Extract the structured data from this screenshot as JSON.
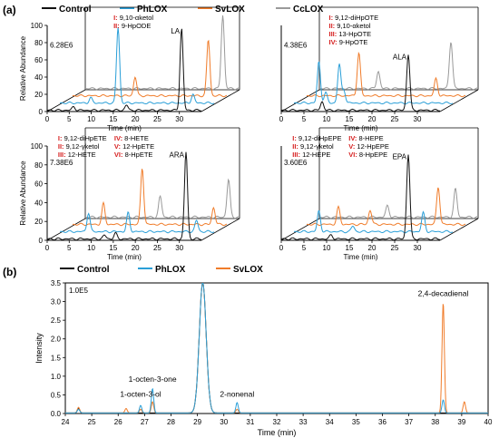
{
  "panel_labels": {
    "a": "(a)",
    "b": "(b)"
  },
  "legend_a": [
    {
      "name": "Control",
      "color": "#111111"
    },
    {
      "name": "PhLOX",
      "color": "#2a9fd8"
    },
    {
      "name": "SvLOX",
      "color": "#f07c2a"
    },
    {
      "name": "CcLOX",
      "color": "#9a9a9a"
    }
  ],
  "legend_b": [
    {
      "name": "Control",
      "color": "#111111"
    },
    {
      "name": "PhLOX",
      "color": "#2a9fd8"
    },
    {
      "name": "SvLOX",
      "color": "#f07c2a"
    }
  ],
  "colors": {
    "control": "#111111",
    "phlox": "#2a9fd8",
    "svlox": "#f07c2a",
    "cclox": "#9a9a9a",
    "marker": "#d62020"
  },
  "chart_data": [
    {
      "type": "line",
      "panel": "a-LA",
      "scale_label": "6.28E6",
      "substrate": "LA",
      "xlabel": "Time (min)",
      "ylabel": "Relative Abundance",
      "xlim": [
        0,
        35
      ],
      "ylim": [
        0,
        100
      ],
      "xticks": [
        0,
        5,
        10,
        15,
        20,
        25,
        30
      ],
      "yticks": [
        0,
        20,
        40,
        60,
        80,
        100
      ],
      "products": [
        {
          "id": "I",
          "name": "9,10-αketol"
        },
        {
          "id": "II",
          "name": "9-HpODE"
        }
      ],
      "series": [
        {
          "name": "Control",
          "peaks": [
            [
              30.5,
              95
            ],
            [
              18,
              6
            ],
            [
              6,
              4
            ]
          ]
        },
        {
          "name": "PhLOX",
          "peaks": [
            [
              13.2,
              88
            ],
            [
              7,
              6
            ],
            [
              30.2,
              10
            ]
          ]
        },
        {
          "name": "SvLOX",
          "peaks": [
            [
              14.2,
              22
            ],
            [
              30.8,
              65
            ]
          ]
        },
        {
          "name": "CcLOX",
          "peaks": [
            [
              31.2,
              85
            ]
          ]
        }
      ]
    },
    {
      "type": "line",
      "panel": "a-ALA",
      "scale_label": "4.38E6",
      "substrate": "ALA",
      "xlabel": "Time (min)",
      "ylabel": "",
      "xlim": [
        0,
        35
      ],
      "ylim": [
        0,
        100
      ],
      "xticks": [
        0,
        5,
        10,
        15,
        20,
        25,
        30
      ],
      "yticks": [],
      "products": [
        {
          "id": "I",
          "name": "9,12-diHpOTE"
        },
        {
          "id": "II",
          "name": "9,10-αketol"
        },
        {
          "id": "III",
          "name": "13-HpOTE"
        },
        {
          "id": "IV",
          "name": "9-HpOTE"
        }
      ],
      "series": [
        {
          "name": "Control",
          "peaks": [
            [
              28,
              65
            ],
            [
              9,
              10
            ]
          ]
        },
        {
          "name": "PhLOX",
          "peaks": [
            [
              5.5,
              48
            ],
            [
              10,
              45
            ],
            [
              7,
              12
            ],
            [
              11,
              15
            ]
          ]
        },
        {
          "name": "SvLOX",
          "peaks": [
            [
              11.5,
              50
            ],
            [
              28.5,
              20
            ]
          ]
        },
        {
          "name": "CcLOX",
          "peaks": [
            [
              13,
              20
            ],
            [
              29,
              55
            ]
          ]
        }
      ]
    },
    {
      "type": "line",
      "panel": "a-ARA",
      "scale_label": "7.38E6",
      "substrate": "ARA",
      "xlabel": "Time (min)",
      "ylabel": "Relative Abundance",
      "xlim": [
        0,
        35
      ],
      "ylim": [
        0,
        100
      ],
      "xticks": [
        0,
        5,
        10,
        15,
        20,
        25,
        30
      ],
      "yticks": [
        0,
        20,
        40,
        60,
        80,
        100
      ],
      "products": [
        {
          "id": "I",
          "name": "9,12-diHpETE"
        },
        {
          "id": "II",
          "name": "9,12-γketol"
        },
        {
          "id": "III",
          "name": "12-HETE"
        },
        {
          "id": "IV",
          "name": "8-HETE"
        },
        {
          "id": "V",
          "name": "12-HpETE"
        },
        {
          "id": "VI",
          "name": "8-HpETE"
        }
      ],
      "series": [
        {
          "name": "Control",
          "peaks": [
            [
              31.5,
              92
            ],
            [
              15.5,
              6
            ],
            [
              13,
              4
            ]
          ]
        },
        {
          "name": "PhLOX",
          "peaks": [
            [
              6.5,
              20
            ],
            [
              15.5,
              20
            ],
            [
              31,
              12
            ]
          ]
        },
        {
          "name": "SvLOX",
          "peaks": [
            [
              7,
              22
            ],
            [
              15.8,
              60
            ],
            [
              32,
              18
            ]
          ]
        },
        {
          "name": "CcLOX",
          "peaks": [
            [
              17,
              22
            ],
            [
              32.5,
              40
            ]
          ]
        }
      ]
    },
    {
      "type": "line",
      "panel": "a-EPA",
      "scale_label": "3.60E6",
      "substrate": "EPA",
      "xlabel": "Time (min)",
      "ylabel": "",
      "xlim": [
        0,
        35
      ],
      "ylim": [
        0,
        100
      ],
      "xticks": [
        0,
        5,
        10,
        15,
        20,
        25,
        30
      ],
      "yticks": [],
      "products": [
        {
          "id": "I",
          "name": "9,12-diHpEPE"
        },
        {
          "id": "II",
          "name": "9,12-γketol"
        },
        {
          "id": "III",
          "name": "12-HEPE"
        },
        {
          "id": "IV",
          "name": "8-HEPE"
        },
        {
          "id": "V",
          "name": "12-HpEPE"
        },
        {
          "id": "VI",
          "name": "8-HpEPE"
        }
      ],
      "series": [
        {
          "name": "Control",
          "peaks": [
            [
              28,
              90
            ],
            [
              11,
              4
            ]
          ]
        },
        {
          "name": "PhLOX",
          "peaks": [
            [
              5.5,
              22
            ],
            [
              28.5,
              20
            ],
            [
              13,
              6
            ]
          ]
        },
        {
          "name": "SvLOX",
          "peaks": [
            [
              7,
              18
            ],
            [
              14,
              15
            ],
            [
              29,
              40
            ]
          ]
        },
        {
          "name": "CcLOX",
          "peaks": [
            [
              15,
              12
            ],
            [
              30,
              30
            ]
          ]
        }
      ]
    },
    {
      "type": "line",
      "panel": "b",
      "scale_label": "1.0E5",
      "xlabel": "Time (min)",
      "ylabel": "Intensity",
      "xlim": [
        24,
        40
      ],
      "ylim": [
        0,
        3.5
      ],
      "xticks": [
        24,
        25,
        26,
        27,
        28,
        29,
        30,
        31,
        32,
        33,
        34,
        35,
        36,
        37,
        38,
        39,
        40
      ],
      "yticks": [
        0,
        0.5,
        1.0,
        1.5,
        2.0,
        2.5,
        3.0,
        3.5
      ],
      "annotations": [
        {
          "text": "1-octen-3-ol",
          "x": 26.85,
          "y": 0.3
        },
        {
          "text": "1-octen-3-one",
          "x": 27.3,
          "y": 0.7
        },
        {
          "text": "2-nonenal",
          "x": 30.5,
          "y": 0.3
        },
        {
          "text": "2,4-decadienal",
          "x": 38.3,
          "y": 3.0
        }
      ],
      "series": [
        {
          "name": "Control",
          "peaks": [
            [
              29.2,
              3.5
            ],
            [
              24.5,
              0.12
            ]
          ]
        },
        {
          "name": "PhLOX",
          "peaks": [
            [
              29.2,
              3.5
            ],
            [
              26.85,
              0.2
            ],
            [
              27.3,
              0.65
            ],
            [
              30.5,
              0.28
            ],
            [
              38.3,
              0.35
            ],
            [
              24.5,
              0.1
            ]
          ]
        },
        {
          "name": "SvLOX",
          "peaks": [
            [
              29.2,
              3.5
            ],
            [
              26.85,
              0.1
            ],
            [
              27.3,
              0.3
            ],
            [
              30.5,
              0.1
            ],
            [
              38.3,
              2.95
            ],
            [
              39.1,
              0.3
            ],
            [
              24.5,
              0.15
            ],
            [
              26.3,
              0.12
            ]
          ]
        }
      ]
    }
  ]
}
